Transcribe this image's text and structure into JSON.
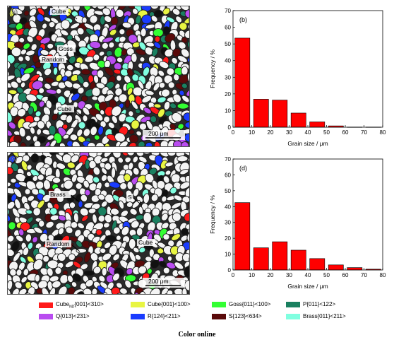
{
  "panels": {
    "a": {
      "label": "(a)",
      "annotations": [
        "Cube",
        "Goss",
        "Random",
        "Cube"
      ],
      "scale_bar": "200 μm"
    },
    "c": {
      "label": "(c)",
      "annotations": [
        "Brass",
        "S",
        "Random",
        "Cube"
      ],
      "scale_bar": "200 μm"
    }
  },
  "chart_data": [
    {
      "type": "bar",
      "panel_label": "(b)",
      "x": [
        5,
        15,
        25,
        35,
        45,
        55,
        65,
        75
      ],
      "values": [
        53.5,
        16.8,
        16.3,
        8.5,
        3.2,
        0.8,
        0.1,
        0.1
      ],
      "xlabel": "Grain size / μm",
      "ylabel": "Frequency / %",
      "xlim": [
        0,
        80
      ],
      "ylim": [
        0,
        70
      ],
      "xticks": [
        0,
        10,
        20,
        30,
        40,
        50,
        60,
        70,
        80
      ],
      "yticks": [
        0,
        10,
        20,
        30,
        40,
        50,
        60,
        70
      ],
      "bar_color": "#ff0000",
      "grid": false
    },
    {
      "type": "bar",
      "panel_label": "(d)",
      "x": [
        5,
        15,
        25,
        35,
        45,
        55,
        65,
        75
      ],
      "values": [
        42.5,
        14.0,
        17.8,
        12.5,
        7.2,
        3.2,
        1.5,
        0.5
      ],
      "xlabel": "Grain size / μm",
      "ylabel": "Frequency / %",
      "xlim": [
        0,
        80
      ],
      "ylim": [
        0,
        70
      ],
      "xticks": [
        0,
        10,
        20,
        30,
        40,
        50,
        60,
        70,
        80
      ],
      "yticks": [
        0,
        10,
        20,
        30,
        40,
        50,
        60,
        70
      ],
      "bar_color": "#ff0000",
      "grid": false
    }
  ],
  "legend": [
    {
      "pre": "Cube",
      "sub": "ND",
      "post": "{001}<310>",
      "color": "#ff1a1a"
    },
    {
      "pre": "Cube{001}<100>",
      "sub": "",
      "post": "",
      "color": "#e8f542"
    },
    {
      "pre": "Goss{011}<100>",
      "sub": "",
      "post": "",
      "color": "#33ff33"
    },
    {
      "pre": "P{011}<122>",
      "sub": "",
      "post": "",
      "color": "#1a8060"
    },
    {
      "pre": "Q{013}<231>",
      "sub": "",
      "post": "",
      "color": "#b94cf0"
    },
    {
      "pre": "R{124}<211>",
      "sub": "",
      "post": "",
      "color": "#1a3cff"
    },
    {
      "pre": "S{123}<634>",
      "sub": "",
      "post": "",
      "color": "#5a0a0a"
    },
    {
      "pre": "Brass{011}<211>",
      "sub": "",
      "post": "",
      "color": "#80ffe0"
    }
  ],
  "footer": "Color online"
}
